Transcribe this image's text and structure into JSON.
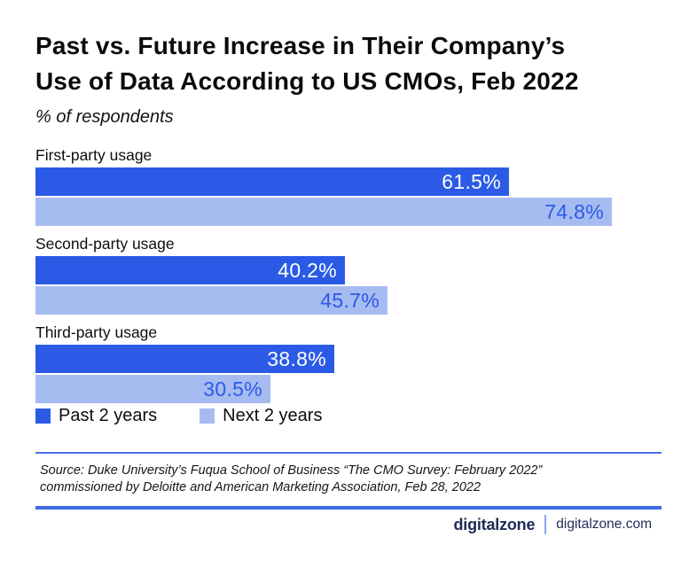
{
  "title": {
    "line1": "Past vs. Future Increase in Their Company’s",
    "line2": "Use of Data According to US CMOs, Feb 2022"
  },
  "subtitle": "% of respondents",
  "chart_data": {
    "type": "bar",
    "orientation": "horizontal",
    "title": "Past vs. Future Increase in Their Company’s Use of Data According to US CMOs, Feb 2022",
    "subtitle": "% of respondents",
    "categories": [
      "First-party usage",
      "Second-party usage",
      "Third-party usage"
    ],
    "series": [
      {
        "name": "Past 2 years",
        "color": "#2b5be6",
        "value_label_color": "#ffffff",
        "values": [
          61.5,
          40.2,
          38.8
        ]
      },
      {
        "name": "Next 2 years",
        "color": "#a6bbf0",
        "value_label_color": "#2b5be6",
        "values": [
          74.8,
          45.7,
          30.5
        ]
      }
    ],
    "value_suffix": "%",
    "value_labels": "inside-end",
    "xlim": [
      0,
      74.8
    ],
    "grid": false,
    "legend_position": "bottom-left"
  },
  "legend": {
    "items": [
      {
        "label": "Past 2 years",
        "color": "#2b5be6"
      },
      {
        "label": "Next 2 years",
        "color": "#a6bbf0"
      }
    ]
  },
  "source": {
    "line1": "Source: Duke University’s Fuqua School of Business “The CMO Survey: February 2022”",
    "line2": "commissioned by Deloitte and American Marketing Association, Feb 28, 2022"
  },
  "footer": {
    "brand": "digitalzone",
    "url": "digitalzone.com"
  },
  "colors": {
    "accent_dark_blue": "#2b5be6",
    "accent_light_blue": "#a6bbf0",
    "thin_divider_blue": "#4a6fe3",
    "footer_rule_blue": "#3e6be4",
    "brand_navy": "#1f2b54"
  }
}
